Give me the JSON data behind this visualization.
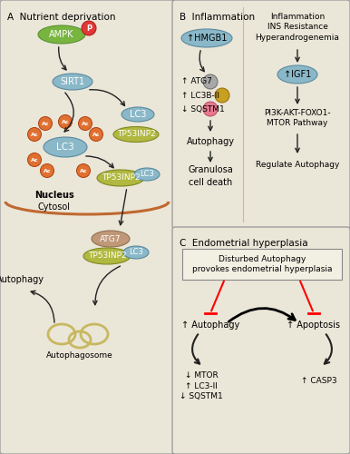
{
  "bg_color": "#dedad0",
  "panel_bg": "#eae6d8",
  "green_color": "#78b540",
  "green_ec": "#5a9030",
  "blue_color": "#8ab8c8",
  "blue_ec": "#5a8aa0",
  "olive_color": "#b0b840",
  "olive_ec": "#808820",
  "red_color": "#e03838",
  "red_ec": "#b01818",
  "orange_color": "#e07030",
  "orange_ec": "#b04010",
  "gray_color": "#a8a8a8",
  "gray_ec": "#686868",
  "yellow_color": "#c8a020",
  "yellow_ec": "#986808",
  "pink_color": "#e87890",
  "pink_ec": "#b84860",
  "tan_color": "#c09878",
  "tan_ec": "#907050",
  "autophagosome_color": "#c8b860",
  "title_A": "A  Nutrient deprivation",
  "title_B": "B  Inflammation",
  "title_C": "C  Endometrial hyperplasia",
  "lbl_AMPK": "AMPK",
  "lbl_P": "P",
  "lbl_SIRT1": "SIRT1",
  "lbl_LC3": "LC3",
  "lbl_TP53INP2": "TP53INP2",
  "lbl_ATG7": "ATG7",
  "lbl_Autophagy": "Autophagy",
  "lbl_Autophagosome": "Autophagosome",
  "lbl_Nucleus": "Nucleus",
  "lbl_Cytosol": "Cytosol",
  "lbl_Ac": "Ac",
  "lbl_HMGB1": "↑HMGB1",
  "lbl_ATG7up": "↑ ATG7",
  "lbl_LC3BII": "↑ LC3B-II",
  "lbl_SQSTM1dn": "↓ SQSTM1",
  "lbl_Autophagy_B": "Autophagy",
  "lbl_Granulosa": "Granulosa\ncell death",
  "lbl_Inflammation3": "Inflammation\nINS Resistance\nHyperandrogenemia",
  "lbl_IGF1": "↑IGF1",
  "lbl_PI3K": "PI3K-AKT-FOXO1-\nMTOR Pathway",
  "lbl_RegAuto": "Regulate Autophagy",
  "lbl_Disturbed": "Disturbed Autophagy\nprovokes endometrial hyperplasia",
  "lbl_UpAutophagy": "↑ Autophagy",
  "lbl_UpApoptosis": "↑ Apoptosis",
  "lbl_DownMTOR": "↓ MTOR\n↑ LC3-II\n↓ SQSTM1",
  "lbl_UpCASP3": "↑ CASP3"
}
